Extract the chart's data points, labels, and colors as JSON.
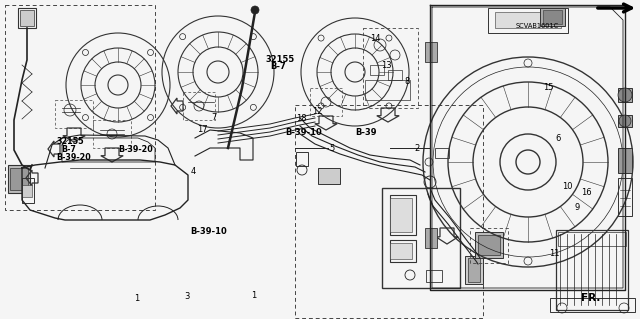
{
  "bg_color": "#f5f5f5",
  "fig_width": 6.4,
  "fig_height": 3.19,
  "dpi": 100,
  "line_color": "#222222",
  "gray": "#777777",
  "light_gray": "#aaaaaa",
  "labels": {
    "B3910_1": [
      0.298,
      0.725,
      "B-39-10",
      6.0,
      true
    ],
    "B3910_2": [
      0.445,
      0.415,
      "B-39-10",
      6.0,
      true
    ],
    "B39": [
      0.555,
      0.415,
      "B-39",
      6.0,
      true
    ],
    "B3920_1": [
      0.088,
      0.495,
      "B-39-20",
      5.8,
      true
    ],
    "B3920_2": [
      0.185,
      0.468,
      "B-39-20",
      5.8,
      true
    ],
    "B7_1_a": [
      0.095,
      0.47,
      "B-7",
      5.8,
      true
    ],
    "B7_1_b": [
      0.088,
      0.445,
      "32155",
      5.8,
      true
    ],
    "B7_2_a": [
      0.423,
      0.21,
      "B-7",
      6.0,
      true
    ],
    "B7_2_b": [
      0.415,
      0.185,
      "32155",
      6.0,
      true
    ],
    "FR": [
      0.908,
      0.935,
      "FR.",
      7.5,
      true
    ],
    "SCVAB": [
      0.805,
      0.08,
      "SCVAB1601C",
      4.8,
      false
    ],
    "n1a": [
      0.21,
      0.935,
      "1",
      6.0,
      false
    ],
    "n1b": [
      0.392,
      0.925,
      "1",
      6.0,
      false
    ],
    "n2": [
      0.648,
      0.465,
      "2",
      6.0,
      false
    ],
    "n3": [
      0.288,
      0.93,
      "3",
      6.0,
      false
    ],
    "n4": [
      0.298,
      0.538,
      "4",
      6.0,
      false
    ],
    "n5": [
      0.515,
      0.465,
      "5",
      6.0,
      false
    ],
    "n6": [
      0.868,
      0.435,
      "6",
      6.0,
      false
    ],
    "n7": [
      0.33,
      0.368,
      "7",
      6.0,
      false
    ],
    "n8": [
      0.632,
      0.255,
      "8",
      6.0,
      false
    ],
    "n9": [
      0.898,
      0.652,
      "9",
      6.0,
      false
    ],
    "n10": [
      0.878,
      0.585,
      "10",
      6.0,
      false
    ],
    "n11": [
      0.858,
      0.795,
      "11",
      6.0,
      false
    ],
    "n12": [
      0.488,
      0.348,
      "12",
      6.0,
      false
    ],
    "n13": [
      0.595,
      0.205,
      "13",
      6.0,
      false
    ],
    "n14": [
      0.578,
      0.122,
      "14",
      6.0,
      false
    ],
    "n15": [
      0.848,
      0.275,
      "15",
      6.0,
      false
    ],
    "n16": [
      0.908,
      0.605,
      "16",
      6.0,
      false
    ],
    "n17": [
      0.308,
      0.405,
      "17",
      6.0,
      false
    ],
    "n18": [
      0.462,
      0.372,
      "18",
      6.0,
      false
    ]
  }
}
